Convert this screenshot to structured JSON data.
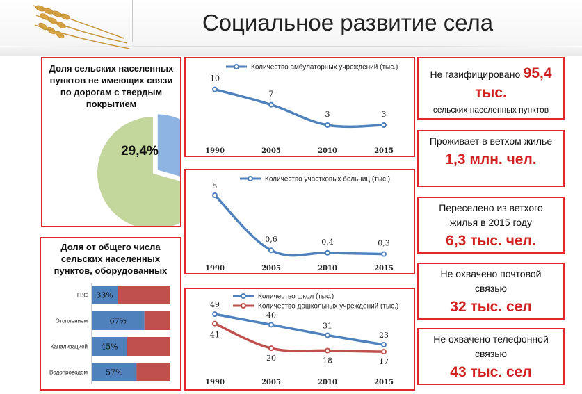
{
  "title": "Социальное развитие села",
  "pie_panel": {
    "title_lines": [
      "Доля сельских населенных",
      "пунктов не имеющих связи",
      "по дорогам с твердым",
      "покрытием"
    ],
    "label": "29,4%"
  },
  "bar_panel": {
    "title_lines": [
      "Доля от общего числа",
      "сельских населенных",
      "пунктов, оборудованных"
    ]
  },
  "info_boxes": [
    {
      "text1": "Не газифицировано",
      "big": "95,4 тыс.",
      "text2": "сельских населенных пунктов"
    },
    {
      "text1": "Проживает в ветхом жилье",
      "big": "1,3 млн. чел.",
      "text2": ""
    },
    {
      "text1": "Переселено из ветхого жилья в 2015 году",
      "big": "6,3 тыс. чел.",
      "text2": ""
    },
    {
      "text1": "Не охвачено почтовой связью",
      "big": "32 тыс. сел",
      "text2": ""
    },
    {
      "text1": "Не охвачено телефонной связью",
      "big": "43 тыс. сел",
      "text2": ""
    }
  ],
  "chart_data": [
    {
      "type": "pie",
      "slices": [
        {
          "label": "29,4%",
          "value": 29.4,
          "color": "#8eb4e3"
        },
        {
          "label": "",
          "value": 70.6,
          "color": "#c3d69b"
        }
      ]
    },
    {
      "type": "line",
      "categories": [
        "1990",
        "2005",
        "2010",
        "2015"
      ],
      "series": [
        {
          "name": "Количество амбулаторных учреждений (тыс.)",
          "values": [
            10,
            7,
            3,
            3
          ],
          "labels": [
            "10",
            "7",
            "3",
            "3"
          ],
          "color": "#4f81bd"
        }
      ],
      "ylim": [
        0,
        12
      ]
    },
    {
      "type": "line",
      "categories": [
        "1990",
        "2005",
        "2010",
        "2015"
      ],
      "series": [
        {
          "name": "Количество участковых больниц (тыс.)",
          "values": [
            5,
            0.6,
            0.4,
            0.3
          ],
          "labels": [
            "5",
            "0,6",
            "0,4",
            "0,3"
          ],
          "color": "#4f81bd"
        }
      ],
      "ylim": [
        0,
        6
      ]
    },
    {
      "type": "line",
      "categories": [
        "1990",
        "2005",
        "2010",
        "2015"
      ],
      "series": [
        {
          "name": "Количество школ (тыс.)",
          "values": [
            49,
            40,
            31,
            23
          ],
          "labels": [
            "49",
            "40",
            "31",
            "23"
          ],
          "color": "#4f81bd"
        },
        {
          "name": "Количество дошкольных учреждений (тыс.)",
          "values": [
            41,
            20,
            18,
            17
          ],
          "labels": [
            "41",
            "20",
            "18",
            "17"
          ],
          "color": "#c0504d"
        }
      ],
      "ylim": [
        10,
        55
      ]
    },
    {
      "type": "bar",
      "orientation": "horizontal",
      "stacked": true,
      "categories": [
        "ГВС",
        "Отоплением",
        "Канализацией",
        "Водопроводом"
      ],
      "values": [
        33,
        67,
        45,
        57
      ],
      "value_labels": [
        "33%",
        "67%",
        "45%",
        "57%"
      ],
      "colors": [
        "#4f81bd",
        "#c0504d"
      ],
      "xlim": [
        0,
        100
      ]
    }
  ]
}
